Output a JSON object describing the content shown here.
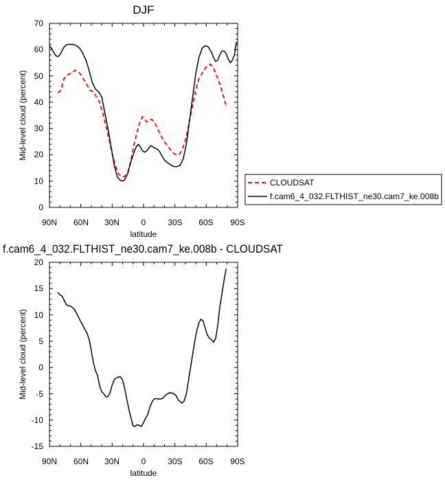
{
  "chart_data": [
    {
      "type": "line",
      "title": "DJF",
      "xlabel": "latitude",
      "ylabel": "Mid-level cloud (percent)",
      "xlim": [
        90,
        -90
      ],
      "ylim": [
        0,
        70
      ],
      "x_ticks": [
        90,
        60,
        30,
        0,
        -30,
        -60,
        -90
      ],
      "x_tick_labels": [
        "90N",
        "60N",
        "30N",
        "0",
        "30S",
        "60S",
        "90S"
      ],
      "y_ticks": [
        0,
        10,
        20,
        30,
        40,
        50,
        60,
        70
      ],
      "y_tick_labels": [
        "0",
        "10",
        "20",
        "30",
        "40",
        "50",
        "60",
        "70"
      ],
      "legend_position": "right",
      "series": [
        {
          "name": "CLOUDSAT",
          "color": "#ff0000",
          "dash": "dashed",
          "points": [
            [
              82,
              43.7
            ],
            [
              80,
              44
            ],
            [
              78,
              46
            ],
            [
              76,
              49
            ],
            [
              74,
              50
            ],
            [
              72,
              50.5
            ],
            [
              70,
              51
            ],
            [
              68,
              51.5
            ],
            [
              65,
              52.2
            ],
            [
              62,
              51.5
            ],
            [
              60,
              50.5
            ],
            [
              57,
              48.5
            ],
            [
              54,
              46.5
            ],
            [
              51,
              44.5
            ],
            [
              48,
              44
            ],
            [
              45,
              42
            ],
            [
              42,
              40
            ],
            [
              39,
              36
            ],
            [
              36,
              31
            ],
            [
              33,
              26
            ],
            [
              30,
              20.5
            ],
            [
              27,
              16
            ],
            [
              24,
              12.8
            ],
            [
              21,
              11.7
            ],
            [
              18,
              11.7
            ],
            [
              15,
              13.5
            ],
            [
              12,
              18
            ],
            [
              9,
              24
            ],
            [
              6,
              29
            ],
            [
              3,
              33
            ],
            [
              1,
              34.5
            ],
            [
              -1,
              33.5
            ],
            [
              -3,
              32.5
            ],
            [
              -5,
              33
            ],
            [
              -8,
              33.5
            ],
            [
              -11,
              32
            ],
            [
              -14,
              29.5
            ],
            [
              -17,
              27
            ],
            [
              -20,
              25
            ],
            [
              -23,
              23.5
            ],
            [
              -26,
              21.8
            ],
            [
              -29,
              20.5
            ],
            [
              -32,
              20
            ],
            [
              -35,
              20.5
            ],
            [
              -38,
              23
            ],
            [
              -41,
              27
            ],
            [
              -44,
              33
            ],
            [
              -47,
              39
            ],
            [
              -50,
              44.5
            ],
            [
              -53,
              49
            ],
            [
              -56,
              51
            ],
            [
              -59,
              53
            ],
            [
              -62,
              54
            ],
            [
              -64,
              54.5
            ],
            [
              -67,
              53
            ],
            [
              -70,
              50
            ],
            [
              -73,
              47
            ],
            [
              -76,
              43
            ],
            [
              -79,
              38.5
            ]
          ]
        },
        {
          "name": "f.cam6_4_032.FLTHIST_ne30.cam7_ke.008b",
          "color": "#000000",
          "dash": "solid",
          "points": [
            [
              90,
              61.5
            ],
            [
              88,
              60.5
            ],
            [
              86,
              59
            ],
            [
              84,
              57.8
            ],
            [
              82,
              57.3
            ],
            [
              80,
              58
            ],
            [
              78,
              59.5
            ],
            [
              76,
              61
            ],
            [
              73,
              62
            ],
            [
              70,
              62
            ],
            [
              67,
              62
            ],
            [
              64,
              61.5
            ],
            [
              61,
              60.5
            ],
            [
              58,
              58.5
            ],
            [
              55,
              56
            ],
            [
              52,
              52
            ],
            [
              49,
              47.5
            ],
            [
              46,
              45
            ],
            [
              43,
              44
            ],
            [
              40,
              42
            ],
            [
              37,
              36
            ],
            [
              34,
              30
            ],
            [
              31,
              23
            ],
            [
              28,
              16
            ],
            [
              25,
              11.5
            ],
            [
              22,
              10.2
            ],
            [
              20,
              10
            ],
            [
              18,
              10.5
            ],
            [
              15,
              13
            ],
            [
              12,
              17.5
            ],
            [
              9,
              21
            ],
            [
              7,
              23
            ],
            [
              5,
              24
            ],
            [
              3,
              23
            ],
            [
              1,
              21.5
            ],
            [
              -1,
              21
            ],
            [
              -3,
              21.5
            ],
            [
              -5,
              22.5
            ],
            [
              -7,
              23.5
            ],
            [
              -9,
              23
            ],
            [
              -11,
              22.5
            ],
            [
              -13,
              22.2
            ],
            [
              -15,
              21.5
            ],
            [
              -17,
              20
            ],
            [
              -20,
              18
            ],
            [
              -23,
              17
            ],
            [
              -26,
              16.2
            ],
            [
              -29,
              15.5
            ],
            [
              -32,
              15.5
            ],
            [
              -35,
              16
            ],
            [
              -38,
              18.5
            ],
            [
              -41,
              24
            ],
            [
              -44,
              33
            ],
            [
              -47,
              42
            ],
            [
              -50,
              51
            ],
            [
              -53,
              57
            ],
            [
              -56,
              60.5
            ],
            [
              -59,
              61.5
            ],
            [
              -62,
              61
            ],
            [
              -65,
              59
            ],
            [
              -67,
              57
            ],
            [
              -69,
              55.5
            ],
            [
              -71,
              56
            ],
            [
              -73,
              58
            ],
            [
              -75,
              59.5
            ],
            [
              -77,
              59.5
            ],
            [
              -79,
              58.5
            ],
            [
              -81,
              56.5
            ],
            [
              -83,
              55
            ],
            [
              -85,
              56
            ],
            [
              -87,
              58
            ],
            [
              -88,
              61
            ],
            [
              -89,
              63
            ]
          ]
        }
      ]
    },
    {
      "type": "line",
      "title": "f.cam6_4_032.FLTHIST_ne30.cam7_ke.008b - CLOUDSAT",
      "xlabel": "latitude",
      "ylabel": "Mid-level cloud (percent)",
      "xlim": [
        90,
        -90
      ],
      "ylim": [
        -15,
        20
      ],
      "x_ticks": [
        90,
        60,
        30,
        0,
        -30,
        -60,
        -90
      ],
      "x_tick_labels": [
        "90N",
        "60N",
        "30N",
        "0",
        "30S",
        "60S",
        "90S"
      ],
      "y_ticks": [
        -15,
        -10,
        -5,
        0,
        5,
        10,
        15,
        20
      ],
      "y_tick_labels": [
        "-15",
        "-10",
        "-5",
        "0",
        "5",
        "10",
        "15",
        "20"
      ],
      "series": [
        {
          "color": "#000000",
          "dash": "solid",
          "points": [
            [
              82,
              14.3
            ],
            [
              80,
              13.8
            ],
            [
              78,
              13.6
            ],
            [
              76,
              12.8
            ],
            [
              74,
              12
            ],
            [
              72,
              11.7
            ],
            [
              70,
              11.7
            ],
            [
              68,
              11.4
            ],
            [
              66,
              11
            ],
            [
              64,
              10.3
            ],
            [
              62,
              9.5
            ],
            [
              60,
              8.7
            ],
            [
              58,
              8
            ],
            [
              56,
              7.2
            ],
            [
              54,
              6.5
            ],
            [
              52,
              5.3
            ],
            [
              50,
              3.2
            ],
            [
              48,
              1
            ],
            [
              46,
              -0.6
            ],
            [
              44,
              -1.5
            ],
            [
              42,
              -3.5
            ],
            [
              40,
              -4.6
            ],
            [
              38,
              -5
            ],
            [
              36,
              -5.6
            ],
            [
              34,
              -5.5
            ],
            [
              32,
              -4.8
            ],
            [
              30,
              -3.3
            ],
            [
              28,
              -2.3
            ],
            [
              26,
              -2
            ],
            [
              24,
              -1.8
            ],
            [
              22,
              -1.8
            ],
            [
              20,
              -2.4
            ],
            [
              18,
              -4
            ],
            [
              16,
              -6
            ],
            [
              14,
              -8
            ],
            [
              12,
              -9.6
            ],
            [
              10,
              -11.1
            ],
            [
              8,
              -11.2
            ],
            [
              6,
              -10.9
            ],
            [
              4,
              -11
            ],
            [
              2,
              -11.2
            ],
            [
              0,
              -10.5
            ],
            [
              -2,
              -9.6
            ],
            [
              -4,
              -9
            ],
            [
              -6,
              -7.6
            ],
            [
              -8,
              -6.6
            ],
            [
              -10,
              -6
            ],
            [
              -12,
              -5.9
            ],
            [
              -14,
              -6
            ],
            [
              -16,
              -6
            ],
            [
              -18,
              -5.9
            ],
            [
              -20,
              -5.5
            ],
            [
              -22,
              -5.1
            ],
            [
              -25,
              -4.8
            ],
            [
              -28,
              -4.9
            ],
            [
              -31,
              -5.3
            ],
            [
              -33,
              -6.1
            ],
            [
              -35,
              -6.5
            ],
            [
              -37,
              -6.8
            ],
            [
              -39,
              -6.3
            ],
            [
              -41,
              -5
            ],
            [
              -43,
              -2.5
            ],
            [
              -45,
              0
            ],
            [
              -47,
              2.5
            ],
            [
              -49,
              5
            ],
            [
              -51,
              7
            ],
            [
              -53,
              8.5
            ],
            [
              -55,
              9.2
            ],
            [
              -57,
              8.8
            ],
            [
              -59,
              7.5
            ],
            [
              -61,
              6.2
            ],
            [
              -63,
              5.6
            ],
            [
              -65,
              5.3
            ],
            [
              -67,
              4.8
            ],
            [
              -69,
              5.5
            ],
            [
              -71,
              8
            ],
            [
              -73,
              11.5
            ],
            [
              -75,
              14
            ],
            [
              -77,
              16.5
            ],
            [
              -79,
              18.8
            ]
          ]
        }
      ]
    }
  ]
}
